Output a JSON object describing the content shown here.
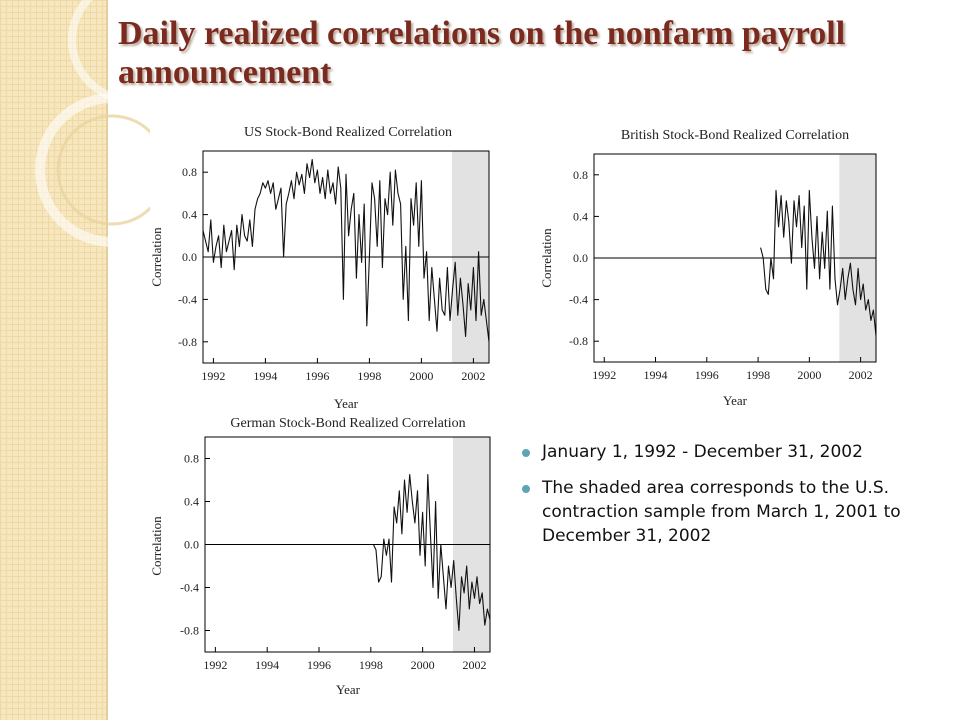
{
  "slide": {
    "title": "Daily realized correlations on the nonfarm payroll announcement",
    "bullets": [
      "January 1, 1992 - December 31, 2002",
      "The shaded area corresponds to the U.S. contraction sample from March 1, 2001 to December 31, 2002"
    ]
  },
  "chart_data": [
    {
      "type": "line",
      "title": "US Stock-Bond Realized Correlation",
      "xlabel": "Year",
      "ylabel": "Correlation",
      "xlim": [
        1991.6,
        2002.6
      ],
      "ylim": [
        -1.0,
        1.0
      ],
      "xticks": [
        "1992",
        "1994",
        "1996",
        "1998",
        "2000",
        "2002"
      ],
      "yticks": [
        "0.8",
        "0.4",
        "0.0",
        "-0.4",
        "-0.8"
      ],
      "shaded_region": [
        2001.17,
        2003.0
      ],
      "series": [
        {
          "x": [
            1991.6,
            1991.7,
            1991.8,
            1991.9,
            1992.0,
            1992.1,
            1992.2,
            1992.3,
            1992.4,
            1992.5,
            1992.6,
            1992.7,
            1992.8,
            1992.9,
            1993.0,
            1993.1,
            1993.2,
            1993.3,
            1993.4,
            1993.5,
            1993.6,
            1993.7,
            1993.8,
            1993.9,
            1994.0,
            1994.1,
            1994.2,
            1994.3,
            1994.4,
            1994.5,
            1994.6,
            1994.7,
            1994.8,
            1994.9,
            1995.0,
            1995.1,
            1995.2,
            1995.3,
            1995.4,
            1995.5,
            1995.6,
            1995.7,
            1995.8,
            1995.9,
            1996.0,
            1996.1,
            1996.2,
            1996.3,
            1996.4,
            1996.5,
            1996.6,
            1996.7,
            1996.8,
            1996.9,
            1997.0,
            1997.1,
            1997.2,
            1997.3,
            1997.4,
            1997.5,
            1997.6,
            1997.7,
            1997.8,
            1997.9,
            1998.0,
            1998.1,
            1998.2,
            1998.3,
            1998.4,
            1998.5,
            1998.6,
            1998.7,
            1998.8,
            1998.9,
            1999.0,
            1999.1,
            1999.2,
            1999.3,
            1999.4,
            1999.5,
            1999.6,
            1999.7,
            1999.8,
            1999.9,
            2000.0,
            2000.1,
            2000.2,
            2000.3,
            2000.4,
            2000.5,
            2000.6,
            2000.7,
            2000.8,
            2000.9,
            2001.0,
            2001.1,
            2001.2,
            2001.3,
            2001.4,
            2001.5,
            2001.6,
            2001.7,
            2001.8,
            2001.9,
            2002.0,
            2002.1,
            2002.2,
            2002.3,
            2002.4,
            2002.5,
            2002.6
          ],
          "y": [
            0.25,
            0.15,
            0.05,
            0.35,
            -0.05,
            0.1,
            0.2,
            -0.1,
            0.3,
            0.05,
            0.15,
            0.25,
            -0.12,
            0.3,
            0.1,
            0.4,
            0.2,
            0.15,
            0.35,
            0.1,
            0.45,
            0.55,
            0.6,
            0.7,
            0.65,
            0.72,
            0.6,
            0.7,
            0.45,
            0.55,
            0.65,
            0.0,
            0.5,
            0.6,
            0.72,
            0.55,
            0.8,
            0.68,
            0.78,
            0.6,
            0.88,
            0.75,
            0.92,
            0.7,
            0.82,
            0.6,
            0.75,
            0.55,
            0.82,
            0.6,
            0.7,
            0.5,
            0.85,
            0.65,
            -0.4,
            0.78,
            0.2,
            0.45,
            0.6,
            -0.2,
            0.4,
            -0.05,
            0.5,
            -0.65,
            0.0,
            0.7,
            0.55,
            0.1,
            0.72,
            -0.1,
            0.55,
            0.4,
            0.8,
            0.3,
            0.82,
            0.6,
            0.5,
            -0.4,
            0.1,
            -0.6,
            0.55,
            0.3,
            0.7,
            0.1,
            0.72,
            -0.2,
            0.05,
            -0.6,
            -0.1,
            -0.4,
            -0.7,
            -0.2,
            -0.5,
            -0.55,
            -0.1,
            -0.6,
            -0.3,
            -0.05,
            -0.55,
            -0.2,
            -0.45,
            -0.75,
            -0.25,
            -0.5,
            -0.1,
            -0.6,
            0.05,
            -0.55,
            -0.4,
            -0.6,
            -0.8
          ]
        }
      ]
    },
    {
      "type": "line",
      "title": "British Stock-Bond Realized Correlation",
      "xlabel": "Year",
      "ylabel": "Correlation",
      "xlim": [
        1991.6,
        2002.6
      ],
      "ylim": [
        -1.0,
        1.0
      ],
      "xticks": [
        "1992",
        "1994",
        "1996",
        "1998",
        "2000",
        "2002"
      ],
      "yticks": [
        "0.8",
        "0.4",
        "0.0",
        "-0.4",
        "-0.8"
      ],
      "shaded_region": [
        2001.17,
        2003.0
      ],
      "series": [
        {
          "x": [
            1998.1,
            1998.2,
            1998.3,
            1998.4,
            1998.5,
            1998.6,
            1998.7,
            1998.8,
            1998.9,
            1999.0,
            1999.1,
            1999.2,
            1999.3,
            1999.4,
            1999.5,
            1999.6,
            1999.7,
            1999.8,
            1999.9,
            2000.0,
            2000.1,
            2000.2,
            2000.3,
            2000.4,
            2000.5,
            2000.6,
            2000.7,
            2000.8,
            2000.9,
            2001.0,
            2001.1,
            2001.2,
            2001.3,
            2001.4,
            2001.5,
            2001.6,
            2001.7,
            2001.8,
            2001.9,
            2002.0,
            2002.1,
            2002.2,
            2002.3,
            2002.4,
            2002.5,
            2002.6
          ],
          "y": [
            0.1,
            0.0,
            -0.3,
            -0.35,
            0.0,
            -0.2,
            0.65,
            0.3,
            0.6,
            0.2,
            0.55,
            0.35,
            -0.05,
            0.55,
            0.3,
            0.6,
            0.1,
            0.5,
            -0.3,
            0.65,
            0.2,
            -0.1,
            0.4,
            -0.2,
            0.25,
            -0.1,
            0.45,
            -0.3,
            0.5,
            -0.2,
            -0.45,
            -0.3,
            -0.1,
            -0.4,
            -0.2,
            -0.05,
            -0.3,
            -0.45,
            -0.1,
            -0.4,
            -0.25,
            -0.5,
            -0.4,
            -0.6,
            -0.5,
            -0.75
          ]
        }
      ]
    },
    {
      "type": "line",
      "title": "German Stock-Bond Realized Correlation",
      "xlabel": "Year",
      "ylabel": "Correlation",
      "xlim": [
        1991.6,
        2002.6
      ],
      "ylim": [
        -1.0,
        1.0
      ],
      "xticks": [
        "1992",
        "1994",
        "1996",
        "1998",
        "2000",
        "2002"
      ],
      "yticks": [
        "0.8",
        "0.4",
        "0.0",
        "-0.4",
        "-0.8"
      ],
      "shaded_region": [
        2001.17,
        2003.0
      ],
      "series": [
        {
          "x": [
            1998.1,
            1998.2,
            1998.3,
            1998.4,
            1998.5,
            1998.6,
            1998.7,
            1998.8,
            1998.9,
            1999.0,
            1999.1,
            1999.2,
            1999.3,
            1999.4,
            1999.5,
            1999.6,
            1999.7,
            1999.8,
            1999.9,
            2000.0,
            2000.1,
            2000.2,
            2000.3,
            2000.4,
            2000.5,
            2000.6,
            2000.7,
            2000.8,
            2000.9,
            2001.0,
            2001.1,
            2001.2,
            2001.3,
            2001.4,
            2001.5,
            2001.6,
            2001.7,
            2001.8,
            2001.9,
            2002.0,
            2002.1,
            2002.2,
            2002.3,
            2002.4,
            2002.5,
            2002.6
          ],
          "y": [
            0.0,
            -0.05,
            -0.35,
            -0.3,
            0.05,
            -0.1,
            0.05,
            -0.35,
            0.35,
            0.2,
            0.5,
            0.1,
            0.6,
            0.3,
            0.65,
            0.4,
            0.2,
            0.5,
            -0.1,
            0.3,
            -0.2,
            0.65,
            0.1,
            -0.4,
            0.4,
            -0.5,
            0.0,
            -0.3,
            -0.6,
            -0.2,
            -0.4,
            -0.15,
            -0.5,
            -0.8,
            -0.3,
            -0.45,
            -0.2,
            -0.6,
            -0.35,
            -0.5,
            -0.3,
            -0.55,
            -0.45,
            -0.75,
            -0.6,
            -0.7
          ]
        }
      ]
    }
  ]
}
